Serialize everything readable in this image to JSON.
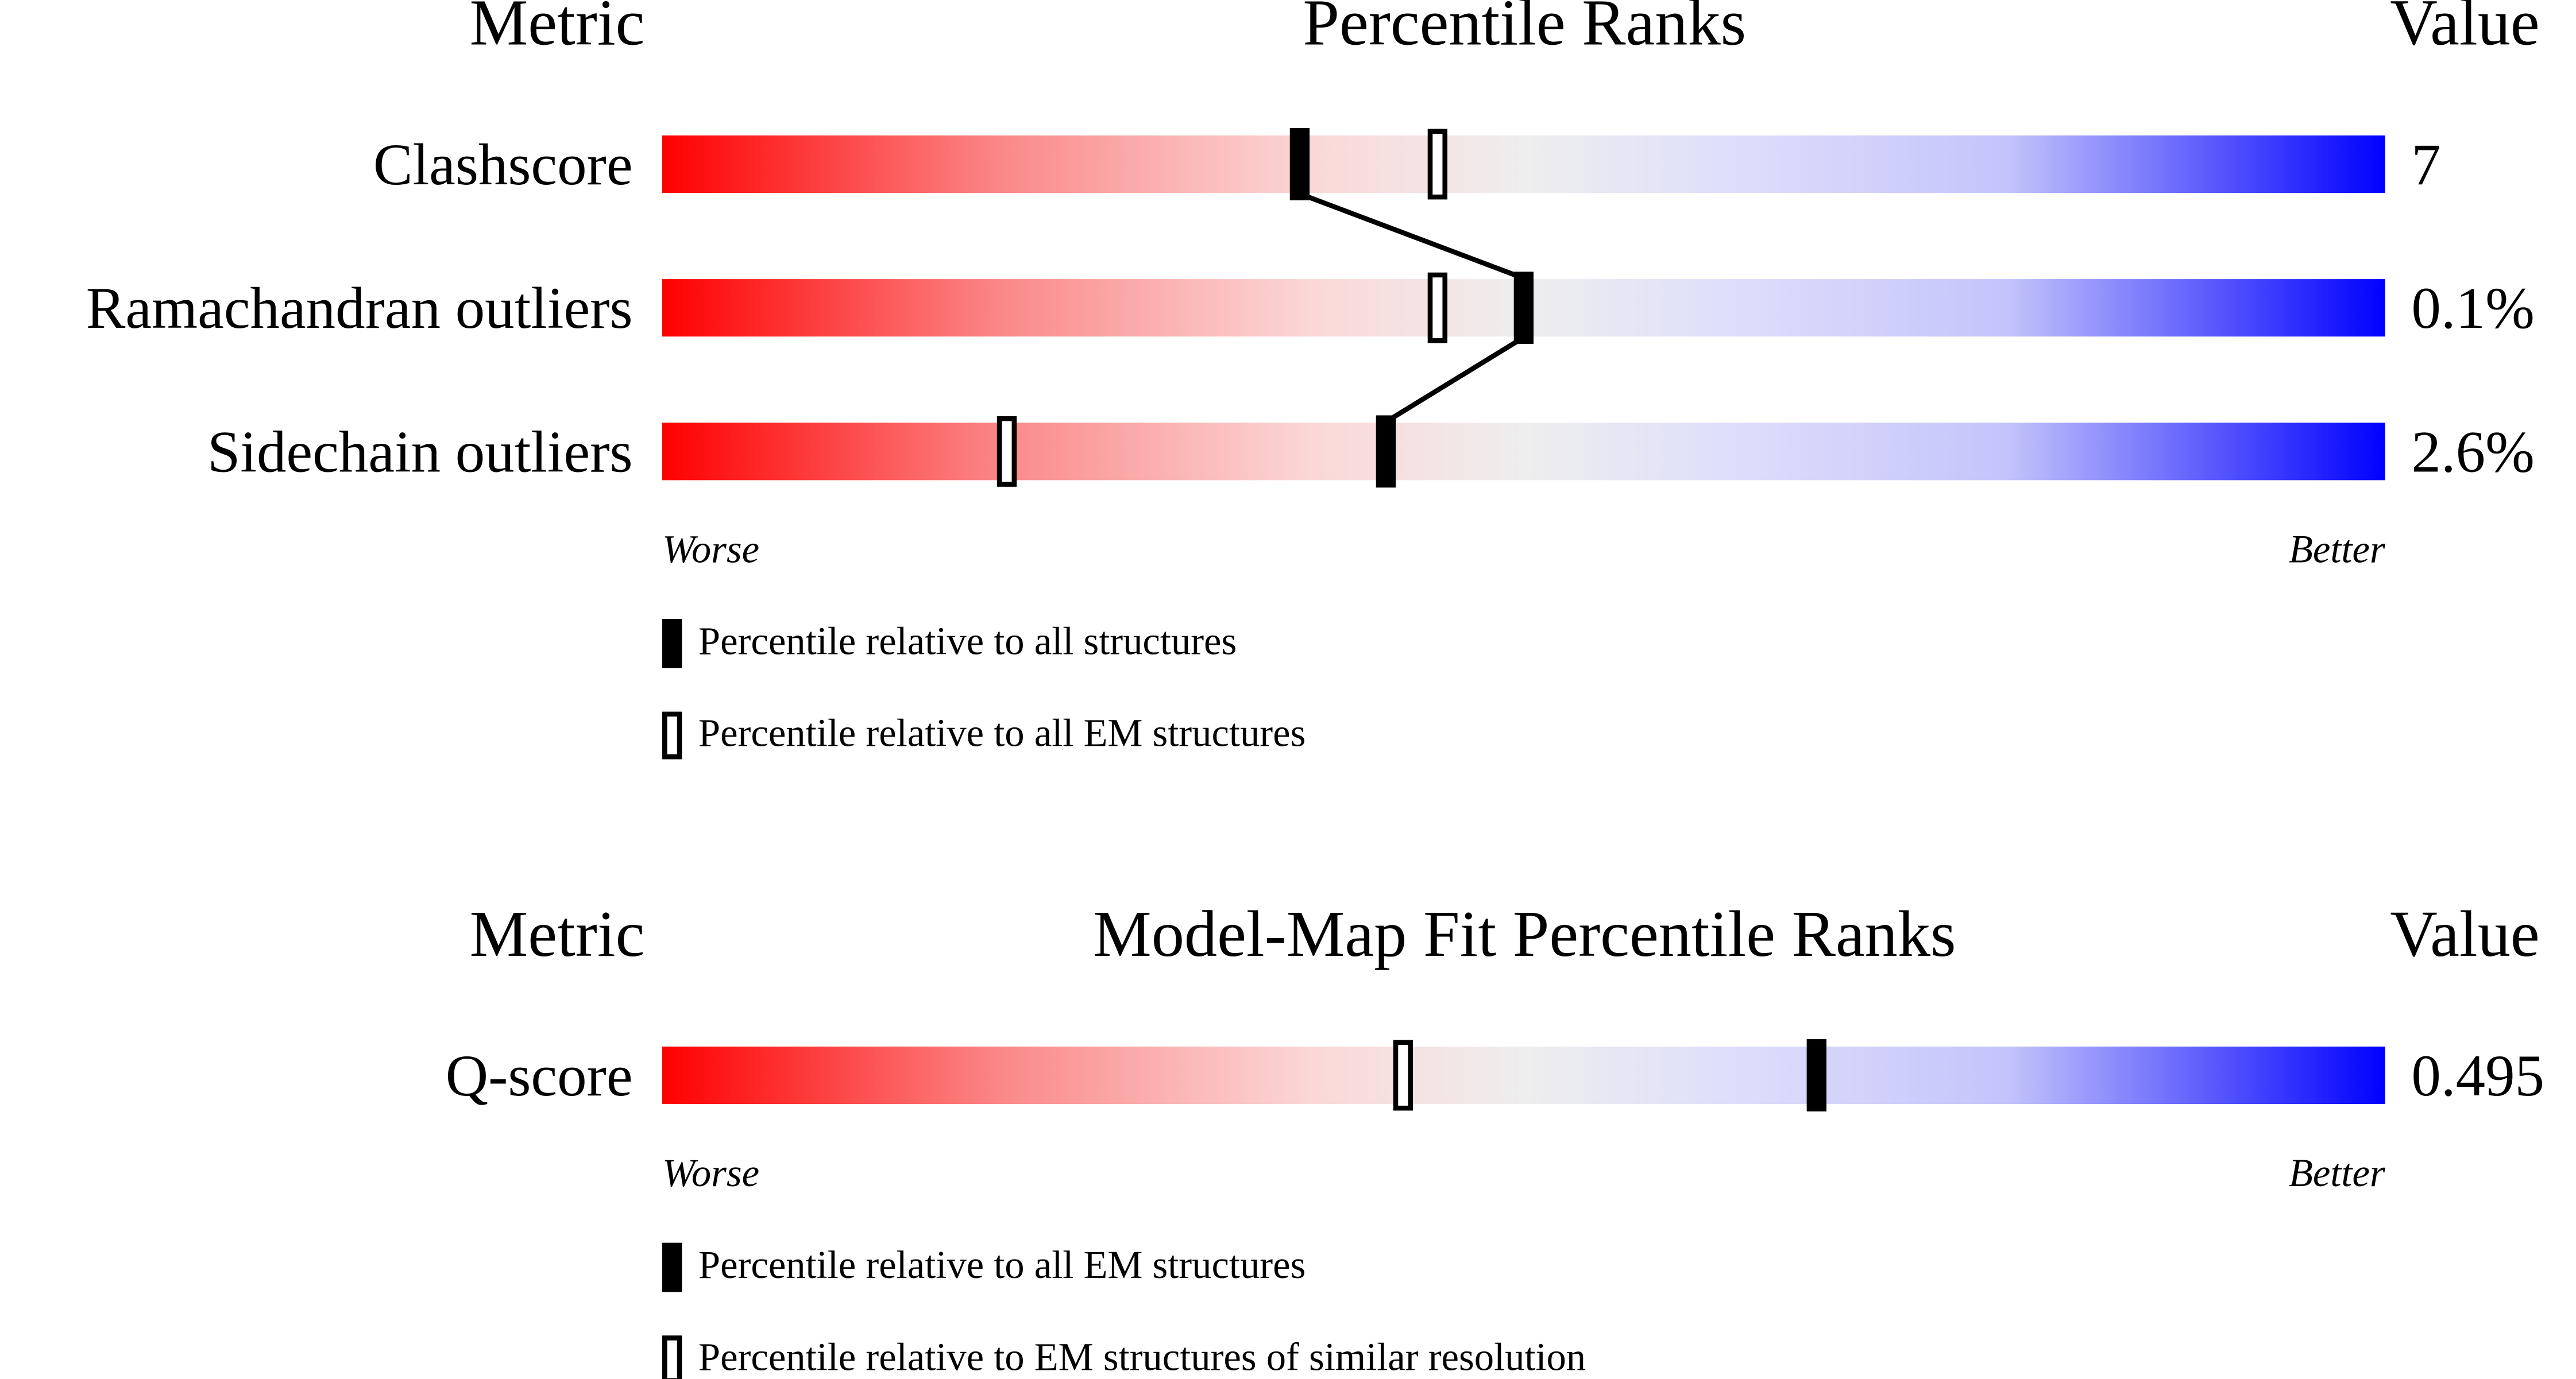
{
  "chart_data": [
    {
      "type": "percentile_slider",
      "metric_header": "Metric",
      "title": "Percentile Ranks",
      "value_header": "Value",
      "categories": [
        "Clashscore",
        "Ramachandran outliers",
        "Sidechain outliers"
      ],
      "metric_values": [
        "7",
        "0.1%",
        "2.6%"
      ],
      "xlim": [
        0,
        100
      ],
      "xlabel_low": "Worse",
      "xlabel_high": "Better",
      "series": [
        {
          "name": "Percentile relative to all structures",
          "style": "filled",
          "color": "#000000",
          "values": [
            37,
            50,
            42
          ]
        },
        {
          "name": "Percentile relative to all EM structures",
          "style": "open",
          "color": "#000000",
          "values": [
            45,
            45,
            20
          ]
        }
      ]
    },
    {
      "type": "percentile_slider",
      "metric_header": "Metric",
      "title": "Model-Map Fit Percentile Ranks",
      "value_header": "Value",
      "categories": [
        "Q-score"
      ],
      "metric_values": [
        "0.495"
      ],
      "xlim": [
        0,
        100
      ],
      "xlabel_low": "Worse",
      "xlabel_high": "Better",
      "series": [
        {
          "name": "Percentile relative to all EM structures",
          "style": "filled",
          "color": "#000000",
          "values": [
            67
          ]
        },
        {
          "name": "Percentile relative to EM structures of similar resolution",
          "style": "open",
          "color": "#000000",
          "values": [
            43
          ]
        }
      ]
    }
  ]
}
